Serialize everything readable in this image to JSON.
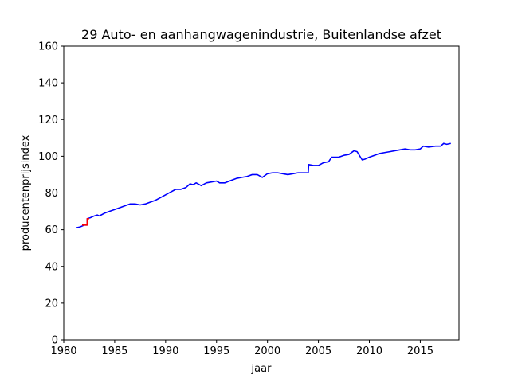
{
  "chart_data": {
    "type": "line",
    "title": "29 Auto- en aanhangwagenindustrie, Buitenlandse afzet",
    "xlabel": "jaar",
    "ylabel": "producentenprijsindex",
    "xlim": [
      1980,
      2018.8
    ],
    "ylim": [
      0,
      160
    ],
    "xticks": [
      1980,
      1985,
      1990,
      1995,
      2000,
      2005,
      2010,
      2015
    ],
    "yticks": [
      0,
      20,
      40,
      60,
      80,
      100,
      120,
      140,
      160
    ],
    "grid": false,
    "legend": "none",
    "series": [
      {
        "color": "#0000ff",
        "x": [
          1981.2,
          1981.6,
          1982.0,
          1982.3,
          1982.3,
          1982.6,
          1983.0,
          1983.3,
          1983.5,
          1984.0,
          1984.5,
          1985.0,
          1985.5,
          1986.0,
          1986.5,
          1987.0,
          1987.5,
          1988.0,
          1988.5,
          1989.0,
          1989.5,
          1990.0,
          1990.5,
          1991.0,
          1991.5,
          1992.0,
          1992.4,
          1992.7,
          1993.0,
          1993.5,
          1994.0,
          1994.5,
          1995.0,
          1995.3,
          1995.8,
          1996.5,
          1997.0,
          1997.5,
          1998.0,
          1998.5,
          1999.0,
          1999.5,
          2000.0,
          2000.5,
          2001.0,
          2001.5,
          2002.0,
          2002.5,
          2003.0,
          2003.5,
          2004.0,
          2004.05,
          2004.5,
          2005.0,
          2005.5,
          2006.0,
          2006.3,
          2006.5,
          2007.0,
          2007.5,
          2008.0,
          2008.5,
          2008.8,
          2009.3,
          2009.6,
          2010.0,
          2010.5,
          2011.0,
          2011.5,
          2012.0,
          2012.5,
          2013.0,
          2013.5,
          2014.0,
          2014.5,
          2015.0,
          2015.3,
          2015.8,
          2016.5,
          2017.0,
          2017.3,
          2017.6,
          2018.0
        ],
        "y": [
          61.0,
          61.5,
          62.5,
          62.5,
          66.0,
          66.5,
          67.5,
          68.0,
          67.5,
          69.0,
          70.0,
          71.0,
          72.0,
          73.0,
          74.0,
          74.0,
          73.5,
          74.0,
          75.0,
          76.0,
          77.5,
          79.0,
          80.5,
          82.0,
          82.0,
          83.0,
          85.0,
          84.5,
          85.5,
          84.0,
          85.5,
          86.0,
          86.5,
          85.5,
          85.5,
          87.0,
          88.0,
          88.5,
          89.0,
          90.0,
          90.0,
          88.5,
          90.5,
          91.0,
          91.0,
          90.5,
          90.0,
          90.5,
          91.0,
          91.0,
          91.0,
          95.5,
          95.0,
          95.0,
          96.5,
          97.0,
          99.5,
          99.5,
          99.5,
          100.5,
          101.0,
          103.0,
          102.5,
          98.0,
          98.5,
          99.5,
          100.5,
          101.5,
          102.0,
          102.5,
          103.0,
          103.5,
          104.0,
          103.5,
          103.5,
          104.0,
          105.5,
          105.0,
          105.5,
          105.5,
          107.0,
          106.5,
          107.0
        ]
      },
      {
        "color": "#ff0000",
        "x": [
          1981.8,
          1982.3,
          1982.3,
          1982.5
        ],
        "y": [
          62.5,
          62.5,
          66.0,
          66.0
        ]
      }
    ]
  }
}
